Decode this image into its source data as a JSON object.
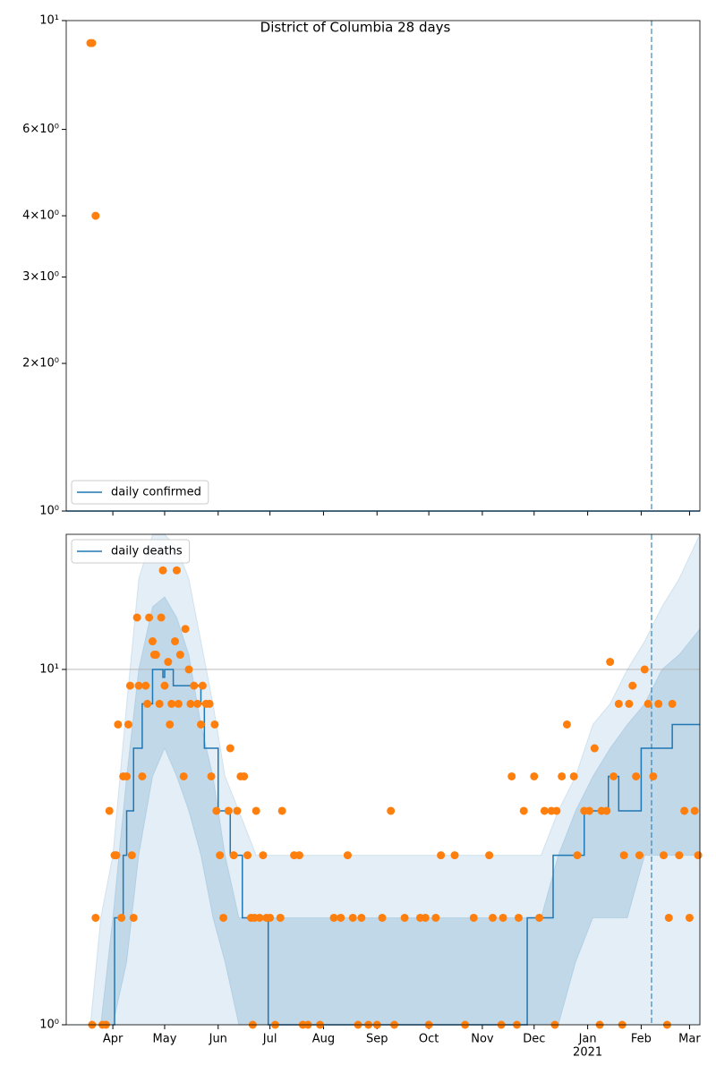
{
  "chart_data": [
    {
      "type": "scatter",
      "title": "District of Columbia 28 days",
      "log_y": true,
      "legend": "lower left",
      "vline_x": 339,
      "xlim": [
        0,
        367
      ],
      "xticks": [
        {
          "value": 27,
          "label": "Apr"
        },
        {
          "value": 57,
          "label": "May"
        },
        {
          "value": 88,
          "label": "Jun"
        },
        {
          "value": 118,
          "label": "Jul"
        },
        {
          "value": 149,
          "label": "Aug"
        },
        {
          "value": 180,
          "label": "Sep"
        },
        {
          "value": 210,
          "label": "Oct"
        },
        {
          "value": 241,
          "label": "Nov"
        },
        {
          "value": 271,
          "label": "Dec"
        },
        {
          "value": 302,
          "label": "Jan"
        },
        {
          "value": 333,
          "label": "Feb"
        },
        {
          "value": 361,
          "label": "Mar"
        }
      ],
      "ylim": [
        1,
        10
      ],
      "yticks": [
        {
          "value": 1,
          "label": "10⁰"
        },
        {
          "value": 2,
          "label": "2×10⁰"
        },
        {
          "value": 3,
          "label": "3×10⁰"
        },
        {
          "value": 4,
          "label": "4×10⁰"
        },
        {
          "value": 6,
          "label": "6×10⁰"
        },
        {
          "value": 10,
          "label": "10¹"
        }
      ],
      "series": [
        {
          "name": "daily confirmed",
          "color": "#1f77b4",
          "x": [
            0,
            367
          ],
          "values": [
            1,
            1
          ]
        }
      ],
      "points": {
        "color": "#ff7f0e",
        "x": [
          14,
          15,
          17
        ],
        "values": [
          9,
          9,
          4
        ]
      }
    },
    {
      "type": "scatter",
      "log_y": true,
      "legend": "upper left",
      "grid": true,
      "vline_x": 339,
      "year_label": "2021",
      "xlim": [
        0,
        367
      ],
      "xticks": [
        {
          "value": 27,
          "label": "Apr"
        },
        {
          "value": 57,
          "label": "May"
        },
        {
          "value": 88,
          "label": "Jun"
        },
        {
          "value": 118,
          "label": "Jul"
        },
        {
          "value": 149,
          "label": "Aug"
        },
        {
          "value": 180,
          "label": "Sep"
        },
        {
          "value": 210,
          "label": "Oct"
        },
        {
          "value": 241,
          "label": "Nov"
        },
        {
          "value": 271,
          "label": "Dec"
        },
        {
          "value": 302,
          "label": "Jan"
        },
        {
          "value": 333,
          "label": "Feb"
        },
        {
          "value": 361,
          "label": "Mar"
        }
      ],
      "ylim": [
        1,
        24
      ],
      "yticks": [
        {
          "value": 1,
          "label": "10⁰"
        },
        {
          "value": 10,
          "label": "10¹"
        }
      ],
      "bands": {
        "color": "#1f77b4",
        "x": [
          0,
          14,
          20,
          27,
          35,
          42,
          50,
          57,
          64,
          71,
          78,
          85,
          92,
          100,
          110,
          120,
          135,
          150,
          170,
          190,
          210,
          230,
          245,
          255,
          265,
          275,
          285,
          295,
          305,
          315,
          325,
          335,
          345,
          355,
          367
        ],
        "outer_lower": [
          1,
          1,
          1,
          1,
          1,
          1,
          1,
          1,
          1,
          1,
          1,
          1,
          1,
          1,
          1,
          1,
          1,
          1,
          1,
          1,
          1,
          1,
          1,
          1,
          1,
          1,
          1,
          1,
          1,
          1,
          1,
          1,
          1,
          1,
          1
        ],
        "outer_upper": [
          1,
          1,
          2,
          3,
          8,
          18,
          24,
          24,
          22,
          18,
          12,
          8,
          5,
          4,
          3,
          3,
          3,
          3,
          3,
          3,
          3,
          3,
          3,
          3,
          3,
          3,
          4,
          5,
          7,
          8,
          10,
          12,
          15,
          18,
          24
        ],
        "inner_lower": [
          1,
          1,
          1,
          1,
          1.5,
          3,
          5,
          6,
          5,
          4,
          3,
          2,
          1.5,
          1,
          1,
          1,
          1,
          1,
          1,
          1,
          1,
          1,
          1,
          1,
          1,
          1,
          1,
          1.5,
          2,
          2,
          2,
          3,
          3,
          3,
          3
        ],
        "inner_upper": [
          1,
          1,
          1,
          2,
          5,
          10,
          15,
          16,
          14,
          11,
          7,
          5,
          3,
          2,
          2,
          2,
          2,
          2,
          2,
          2,
          2,
          2,
          2,
          2,
          2,
          2,
          3,
          4,
          5,
          6,
          7,
          8,
          10,
          11,
          13
        ]
      },
      "series": [
        {
          "name": "daily deaths",
          "color": "#1f77b4",
          "x": [
            27,
            28,
            30,
            33,
            35,
            37,
            39,
            42,
            44,
            46,
            50,
            55,
            56,
            57,
            62,
            68,
            78,
            80,
            88,
            95,
            102,
            110,
            117,
            266,
            267,
            282,
            300,
            305,
            314,
            320,
            333,
            348,
            351,
            367
          ],
          "values": [
            1,
            2,
            2,
            3,
            4,
            4,
            6,
            6,
            8,
            8,
            10,
            10,
            9.5,
            10,
            9,
            9,
            8,
            6,
            4,
            3,
            2,
            2,
            1,
            1,
            2,
            3,
            4,
            4,
            5,
            4,
            6,
            6,
            7,
            7
          ]
        }
      ],
      "points": {
        "color": "#ff7f0e",
        "x": [
          15,
          17,
          21,
          23,
          25,
          28,
          29,
          30,
          32,
          33,
          35,
          36,
          38,
          39,
          37,
          41,
          42,
          44,
          46,
          47,
          48,
          50,
          51,
          52,
          54,
          55,
          56,
          57,
          59,
          60,
          61,
          63,
          64,
          65,
          66,
          68,
          69,
          71,
          72,
          74,
          76,
          78,
          79,
          81,
          83,
          84,
          86,
          87,
          89,
          91,
          94,
          95,
          97,
          99,
          101,
          103,
          105,
          107,
          109,
          110,
          112,
          114,
          116,
          118,
          121,
          124,
          125,
          132,
          135,
          137,
          140,
          147,
          155,
          159,
          163,
          166,
          171,
          175,
          180,
          183,
          188,
          196,
          205,
          208,
          214,
          217,
          225,
          231,
          236,
          245,
          247,
          253,
          258,
          262,
          265,
          271,
          274,
          277,
          281,
          284,
          287,
          290,
          294,
          296,
          300,
          303,
          306,
          310,
          313,
          315,
          317,
          320,
          323,
          326,
          328,
          330,
          332,
          335,
          337,
          340,
          343,
          346,
          349,
          351,
          355,
          358,
          361,
          364,
          366,
          108,
          169,
          190,
          210,
          252,
          261,
          283,
          309,
          322,
          348
        ],
        "values": [
          1,
          2,
          1,
          1,
          4,
          3,
          3,
          7,
          2,
          5,
          5,
          7,
          3,
          2,
          9,
          14,
          9,
          5,
          9,
          8,
          14,
          12,
          11,
          11,
          8,
          14,
          19,
          9,
          10.5,
          7,
          8,
          12,
          19,
          8,
          11,
          5,
          13,
          10,
          8,
          9,
          8,
          7,
          9,
          8,
          8,
          5,
          7,
          4,
          3,
          2,
          4,
          6,
          3,
          4,
          5,
          5,
          3,
          2,
          2,
          4,
          2,
          3,
          2,
          2,
          1,
          2,
          4,
          3,
          3,
          1,
          1,
          1,
          2,
          2,
          3,
          2,
          2,
          1,
          1,
          2,
          4,
          2,
          2,
          2,
          2,
          3,
          3,
          1,
          2,
          3,
          2,
          2,
          5,
          2,
          4,
          5,
          2,
          4,
          4,
          4,
          5,
          7,
          5,
          3,
          4,
          4,
          6,
          4,
          4,
          10.5,
          5,
          8,
          3,
          8,
          9,
          5,
          3,
          10,
          8,
          5,
          8,
          3,
          2,
          8,
          3,
          4,
          2,
          4,
          3,
          1,
          1,
          1,
          1,
          1,
          1,
          1,
          1,
          1,
          1
        ]
      }
    }
  ]
}
